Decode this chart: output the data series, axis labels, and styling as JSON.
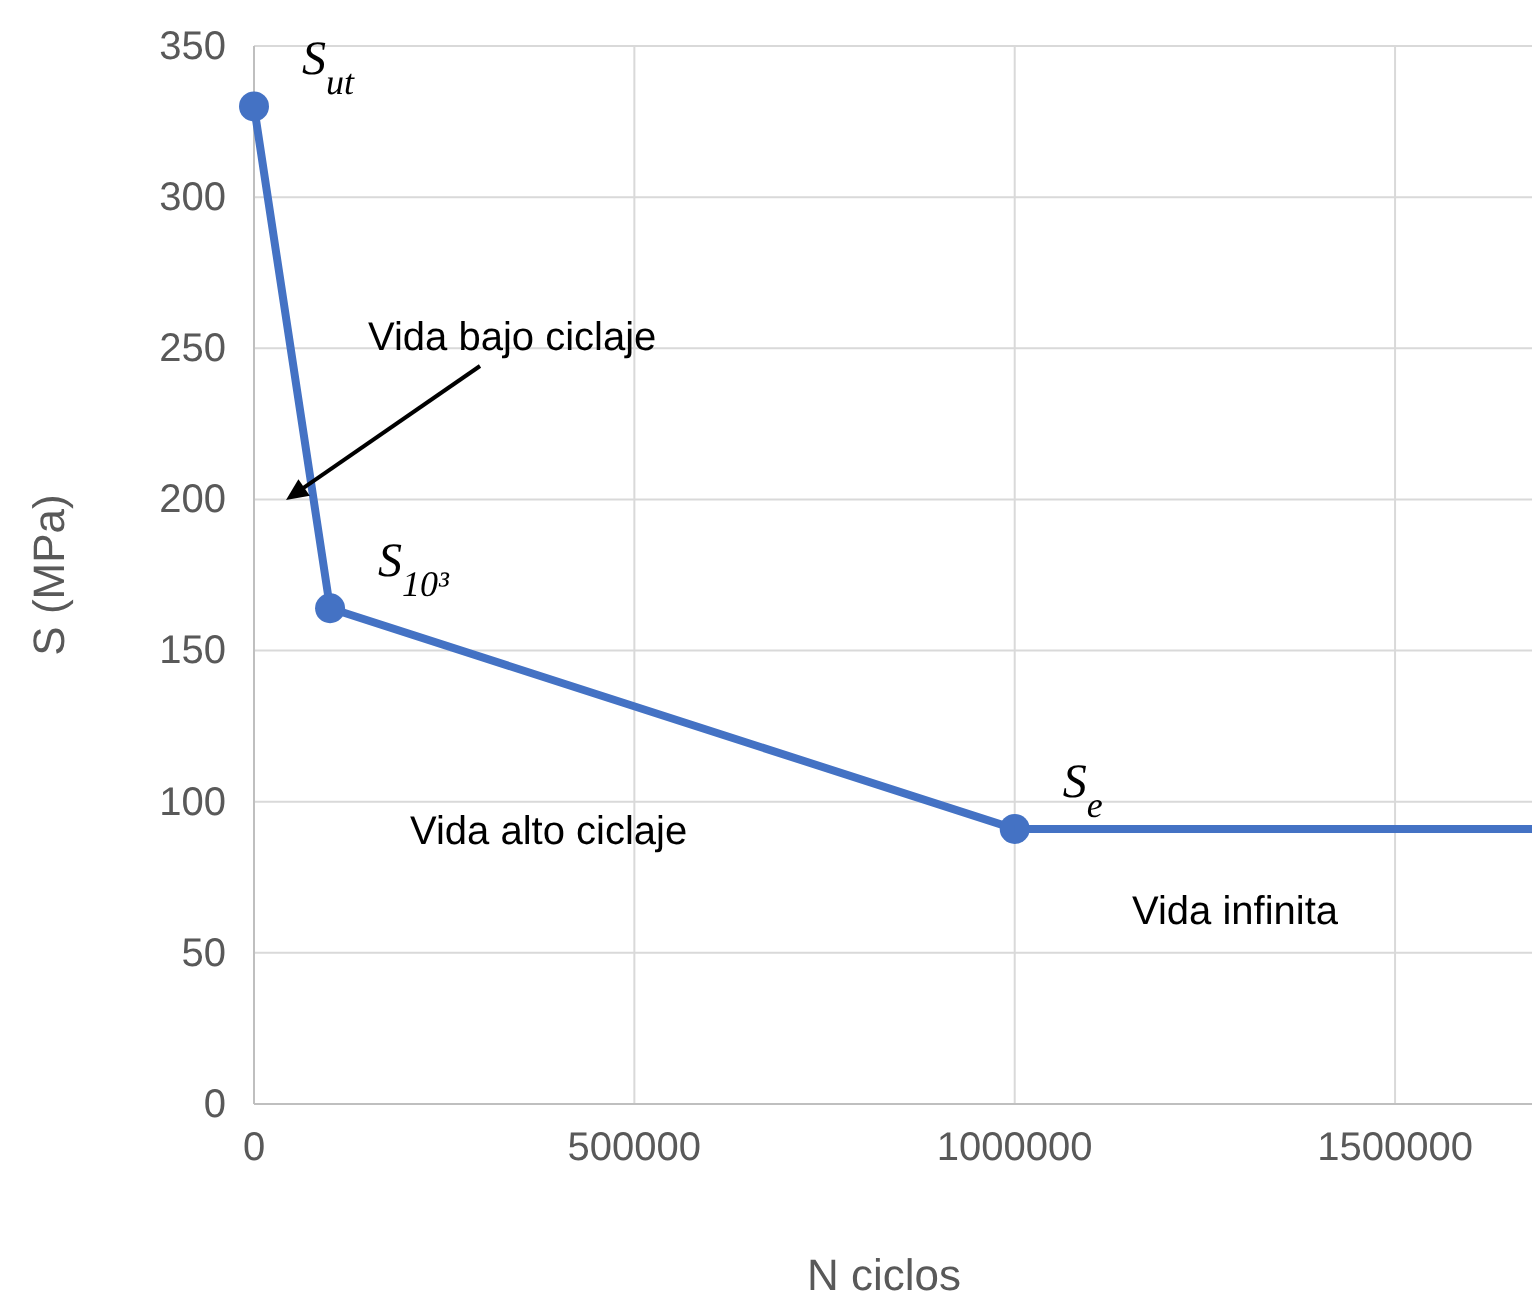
{
  "chart_data": {
    "type": "line",
    "xlabel": "N ciclos",
    "ylabel": "S (MPa)",
    "xlim": [
      0,
      1680000
    ],
    "ylim": [
      0,
      350
    ],
    "xticks": [
      0,
      500000,
      1000000,
      1500000
    ],
    "yticks": [
      0,
      50,
      100,
      150,
      200,
      250,
      300,
      350
    ],
    "grid": true,
    "series": [
      {
        "color": "#4472c4",
        "marker": "circle",
        "x": [
          0,
          100000,
          1000000
        ],
        "values": [
          330,
          164,
          91
        ]
      },
      {
        "color": "#4472c4",
        "marker": "none",
        "x": [
          1000000,
          1680000
        ],
        "values": [
          91,
          91
        ]
      }
    ],
    "annotations": [
      {
        "text": "S$_{ut}$",
        "x": 0,
        "y": 330
      },
      {
        "text": "S$_{10³}$",
        "x": 100000,
        "y": 164
      },
      {
        "text": "S$_{e}$",
        "x": 1000000,
        "y": 91
      },
      "Vida bajo ciclaje",
      "Vida alto ciclaje",
      "Vida infinita"
    ]
  }
}
